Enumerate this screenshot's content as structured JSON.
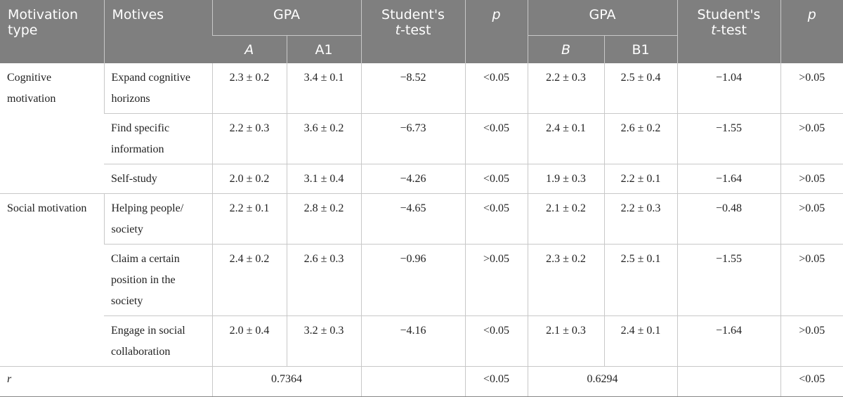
{
  "header": {
    "motivation_type": "Motivation type",
    "motives": "Motives",
    "gpa_1": "GPA",
    "ttest_1": "Student's t-test",
    "ttest_1_a": "Student's",
    "ttest_1_b": "t-test",
    "p_1": "p",
    "gpa_2": "GPA",
    "ttest_2_a": "Student's",
    "ttest_2_b": "t-test",
    "p_2": "p",
    "sub_a": "A",
    "sub_a1": "A1",
    "sub_b": "B",
    "sub_b1": "B1"
  },
  "groups": [
    {
      "type": "Cognitive motivation",
      "rows": [
        {
          "motive": "Expand cognitive horizons",
          "A": "2.3 ± 0.2",
          "A1": "3.4 ± 0.1",
          "t1": "−8.52",
          "p1": "<0.05",
          "B": "2.2 ± 0.3",
          "B1": "2.5 ± 0.4",
          "t2": "−1.04",
          "p2": ">0.05"
        },
        {
          "motive": "Find specific information",
          "A": "2.2 ± 0.3",
          "A1": "3.6 ± 0.2",
          "t1": "−6.73",
          "p1": "<0.05",
          "B": "2.4 ± 0.1",
          "B1": "2.6 ± 0.2",
          "t2": "−1.55",
          "p2": ">0.05"
        },
        {
          "motive": "Self-study",
          "A": "2.0 ± 0.2",
          "A1": "3.1 ± 0.4",
          "t1": "−4.26",
          "p1": "<0.05",
          "B": "1.9 ± 0.3",
          "B1": "2.2 ± 0.1",
          "t2": "−1.64",
          "p2": ">0.05"
        }
      ]
    },
    {
      "type": "Social motivation",
      "rows": [
        {
          "motive": "Helping people/ society",
          "A": "2.2 ± 0.1",
          "A1": "2.8 ± 0.2",
          "t1": "−4.65",
          "p1": "<0.05",
          "B": "2.1 ± 0.2",
          "B1": "2.2 ± 0.3",
          "t2": "−0.48",
          "p2": ">0.05"
        },
        {
          "motive": "Claim a certain position in the society",
          "A": "2.4 ± 0.2",
          "A1": "2.6 ± 0.3",
          "t1": "−0.96",
          "p1": ">0.05",
          "B": "2.3 ± 0.2",
          "B1": "2.5 ± 0.1",
          "t2": "−1.55",
          "p2": ">0.05"
        },
        {
          "motive": "Engage in social collaboration",
          "A": "2.0 ± 0.4",
          "A1": "3.2 ± 0.3",
          "t1": "−4.16",
          "p1": "<0.05",
          "B": "2.1 ± 0.3",
          "B1": "2.4 ± 0.1",
          "t2": "−1.64",
          "p2": ">0.05"
        }
      ]
    }
  ],
  "footer": {
    "label": "r",
    "r1": "0.7364",
    "t1": "",
    "p1": "<0.05",
    "r2": "0.6294",
    "t2": "",
    "p2": "<0.05"
  }
}
